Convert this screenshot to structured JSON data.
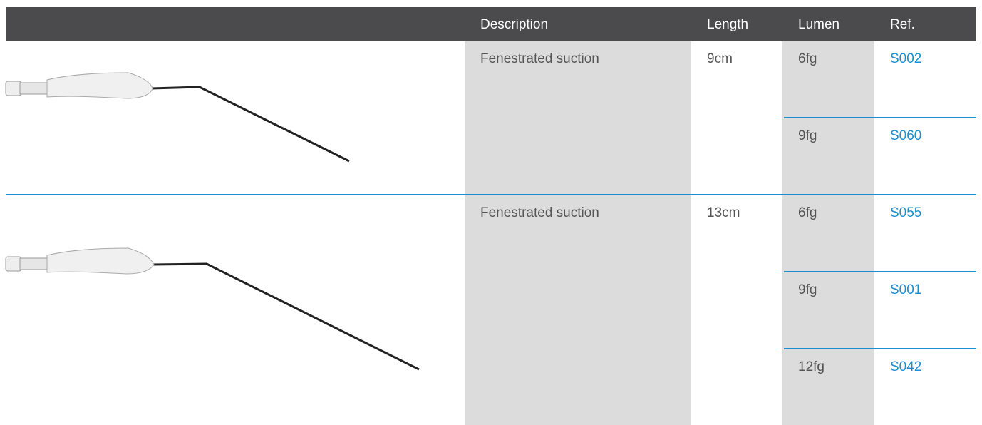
{
  "table": {
    "columns": [
      "Description",
      "Length",
      "Lumen",
      "Ref."
    ],
    "groups": [
      {
        "description": "Fenestrated suction",
        "length": "9cm",
        "variants": [
          {
            "lumen": "6fg",
            "ref": "S002"
          },
          {
            "lumen": "9fg",
            "ref": "S060"
          }
        ]
      },
      {
        "description": "Fenestrated suction",
        "length": "13cm",
        "variants": [
          {
            "lumen": "6fg",
            "ref": "S055"
          },
          {
            "lumen": "9fg",
            "ref": "S001"
          },
          {
            "lumen": "12fg",
            "ref": "S042"
          }
        ]
      }
    ]
  }
}
